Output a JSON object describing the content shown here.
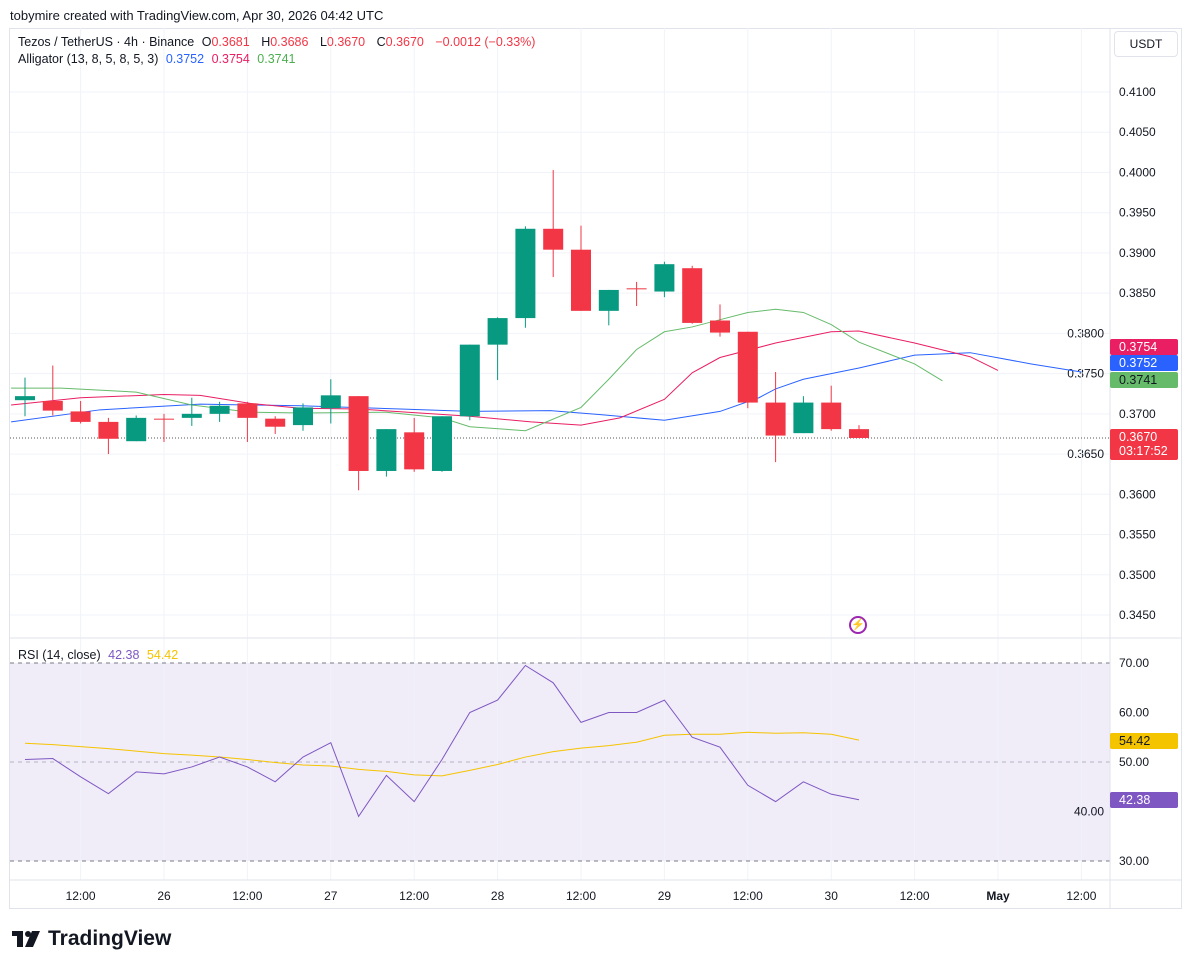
{
  "credit": "tobymire created with TradingView.com, Apr 30, 2026 04:42 UTC",
  "legend": {
    "symbol": "Tezos / TetherUS · 4h · Binance",
    "o_label": "O",
    "o": "0.3681",
    "h_label": "H",
    "h": "0.3686",
    "l_label": "L",
    "l": "0.3670",
    "c_label": "C",
    "c": "0.3670",
    "change": "−0.0012 (−0.33%)",
    "alligator": "Alligator (13, 8, 5, 8, 5, 3)",
    "jaw": "0.3752",
    "teeth": "0.3754",
    "lips": "0.3741",
    "rsi": "RSI (14, close)",
    "rsi_value": "42.38",
    "rsi_ma": "54.42"
  },
  "currency": "USDT",
  "badges": {
    "teeth": "0.3754",
    "jaw": "0.3752",
    "lips": "0.3741",
    "price": "0.3670",
    "countdown": "03:17:52",
    "rsi_ma": "54.42",
    "rsi": "42.38"
  },
  "colors": {
    "up": "#089981",
    "down": "#f23645",
    "jaw": "#2962ff",
    "teeth": "#e91e63",
    "lips": "#66bb6a",
    "rsi": "#7e57c2",
    "rsi_ma": "#f5c400",
    "rsi_bg": "#f0ecf8"
  },
  "brand": "TradingView",
  "chart_data": [
    {
      "type": "candlestick",
      "title": "Tezos / TetherUS · 4h · Binance",
      "ylim": [
        0.342,
        0.4145
      ],
      "yticks": [
        "0.4100",
        "0.4050",
        "0.4000",
        "0.3950",
        "0.3900",
        "0.3850",
        "0.3800",
        "0.3750",
        "0.3700",
        "0.3650",
        "0.3600",
        "0.3550",
        "0.3500",
        "0.3450"
      ],
      "xticks": [
        {
          "label": "12:00",
          "i": 2
        },
        {
          "label": "26",
          "i": 5
        },
        {
          "label": "12:00",
          "i": 8
        },
        {
          "label": "27",
          "i": 11
        },
        {
          "label": "12:00",
          "i": 14
        },
        {
          "label": "28",
          "i": 17
        },
        {
          "label": "12:00",
          "i": 20
        },
        {
          "label": "29",
          "i": 23
        },
        {
          "label": "12:00",
          "i": 26
        },
        {
          "label": "30",
          "i": 29
        },
        {
          "label": "12:00",
          "i": 32
        },
        {
          "label": "May",
          "i": 35
        },
        {
          "label": "12:00",
          "i": 38
        }
      ],
      "candles": [
        [
          0.3717,
          0.3745,
          0.3697,
          0.3722
        ],
        [
          0.3716,
          0.376,
          0.3698,
          0.3704
        ],
        [
          0.3703,
          0.3716,
          0.3688,
          0.369
        ],
        [
          0.369,
          0.3695,
          0.365,
          0.3669
        ],
        [
          0.3666,
          0.3698,
          0.3666,
          0.3695
        ],
        [
          0.3694,
          0.37,
          0.3665,
          0.3693
        ],
        [
          0.3695,
          0.372,
          0.3685,
          0.37
        ],
        [
          0.37,
          0.3715,
          0.369,
          0.371
        ],
        [
          0.3713,
          0.3715,
          0.3665,
          0.3695
        ],
        [
          0.3694,
          0.3697,
          0.3675,
          0.3684
        ],
        [
          0.3686,
          0.3713,
          0.3679,
          0.3708
        ],
        [
          0.3707,
          0.3743,
          0.3688,
          0.3723
        ],
        [
          0.3722,
          0.3722,
          0.3605,
          0.3629
        ],
        [
          0.3629,
          0.3681,
          0.3622,
          0.3681
        ],
        [
          0.3677,
          0.3695,
          0.3628,
          0.3631
        ],
        [
          0.3629,
          0.3697,
          0.3628,
          0.3697
        ],
        [
          0.3697,
          0.3786,
          0.3692,
          0.3786
        ],
        [
          0.3786,
          0.382,
          0.3742,
          0.3819
        ],
        [
          0.3819,
          0.3933,
          0.3807,
          0.393
        ],
        [
          0.393,
          0.4003,
          0.387,
          0.3904
        ],
        [
          0.3904,
          0.3934,
          0.3828,
          0.3828
        ],
        [
          0.3828,
          0.3854,
          0.381,
          0.3854
        ],
        [
          0.3856,
          0.3864,
          0.3834,
          0.3855
        ],
        [
          0.3852,
          0.3889,
          0.3845,
          0.3886
        ],
        [
          0.3881,
          0.3884,
          0.3812,
          0.3813
        ],
        [
          0.3816,
          0.3836,
          0.3796,
          0.3801
        ],
        [
          0.3802,
          0.3802,
          0.3707,
          0.3714
        ],
        [
          0.3714,
          0.3752,
          0.364,
          0.3673
        ],
        [
          0.3676,
          0.3722,
          0.3676,
          0.3714
        ],
        [
          0.3714,
          0.3735,
          0.3679,
          0.3681
        ],
        [
          0.3681,
          0.3686,
          0.367,
          0.367
        ]
      ],
      "last_price": 0.367,
      "series": [
        {
          "name": "Jaw",
          "points": [
            [
              -0.5,
              0.369
            ],
            [
              2.7,
              0.3705
            ],
            [
              6.3,
              0.3712
            ],
            [
              9.9,
              0.371
            ],
            [
              13.5,
              0.3706
            ],
            [
              16,
              0.3703
            ],
            [
              18.9,
              0.3704
            ],
            [
              20.7,
              0.3699
            ],
            [
              23,
              0.3692
            ],
            [
              25,
              0.3703
            ],
            [
              26.4,
              0.372
            ],
            [
              27,
              0.3731
            ],
            [
              28,
              0.3743
            ],
            [
              30,
              0.3757
            ],
            [
              32,
              0.3773
            ],
            [
              34,
              0.3776
            ],
            [
              36.2,
              0.3762
            ],
            [
              38,
              0.3752
            ]
          ]
        },
        {
          "name": "Teeth",
          "points": [
            [
              -0.5,
              0.3711
            ],
            [
              2,
              0.372
            ],
            [
              5,
              0.3724
            ],
            [
              6.3,
              0.3723
            ],
            [
              8.1,
              0.3713
            ],
            [
              9.9,
              0.3707
            ],
            [
              12,
              0.3706
            ],
            [
              14.2,
              0.3701
            ],
            [
              16,
              0.3697
            ],
            [
              18.2,
              0.369
            ],
            [
              20,
              0.3686
            ],
            [
              21.4,
              0.3695
            ],
            [
              23,
              0.3718
            ],
            [
              24,
              0.3751
            ],
            [
              25,
              0.377
            ],
            [
              27,
              0.3788
            ],
            [
              29,
              0.3802
            ],
            [
              30,
              0.3803
            ],
            [
              32,
              0.3788
            ],
            [
              34,
              0.3771
            ],
            [
              35,
              0.3754
            ]
          ]
        },
        {
          "name": "Lips",
          "points": [
            [
              -0.5,
              0.3732
            ],
            [
              1.3,
              0.3732
            ],
            [
              4,
              0.3727
            ],
            [
              6,
              0.3711
            ],
            [
              8.1,
              0.3702
            ],
            [
              10,
              0.3701
            ],
            [
              13,
              0.3702
            ],
            [
              15,
              0.3695
            ],
            [
              16,
              0.3684
            ],
            [
              18,
              0.3679
            ],
            [
              20,
              0.3708
            ],
            [
              21,
              0.3743
            ],
            [
              22,
              0.378
            ],
            [
              23,
              0.3802
            ],
            [
              24,
              0.3808
            ],
            [
              25,
              0.3817
            ],
            [
              26,
              0.3826
            ],
            [
              27,
              0.383
            ],
            [
              28,
              0.3826
            ],
            [
              29,
              0.3811
            ],
            [
              30,
              0.3789
            ],
            [
              32,
              0.3762
            ],
            [
              33,
              0.3741
            ]
          ]
        }
      ]
    },
    {
      "type": "line",
      "title": "RSI (14, close)",
      "ylim": [
        25.5,
        75
      ],
      "yticks": [
        "70.00",
        "60.00",
        "50.00",
        "40.00",
        "30.00"
      ],
      "band": [
        30,
        70
      ],
      "series": [
        {
          "name": "RSI",
          "values": [
            50.5,
            50.7,
            47.0,
            43.6,
            48.0,
            47.6,
            49.0,
            51.0,
            49.0,
            46.0,
            51.0,
            53.9,
            39.0,
            47.3,
            42.0,
            50.5,
            60.0,
            62.5,
            69.5,
            66.0,
            58.0,
            60.0,
            60.0,
            62.5,
            55.0,
            53.0,
            45.3,
            42.0,
            46.0,
            43.5,
            42.38
          ]
        },
        {
          "name": "RSI-based MA",
          "values": [
            53.8,
            53.5,
            53.1,
            52.7,
            52.2,
            51.7,
            51.4,
            51.0,
            50.5,
            49.9,
            49.4,
            49.2,
            48.5,
            48.1,
            47.4,
            47.2,
            48.3,
            49.5,
            51.0,
            52.1,
            52.8,
            53.3,
            54.0,
            55.4,
            55.6,
            55.6,
            56.0,
            55.8,
            55.9,
            55.6,
            54.42
          ]
        }
      ]
    }
  ]
}
